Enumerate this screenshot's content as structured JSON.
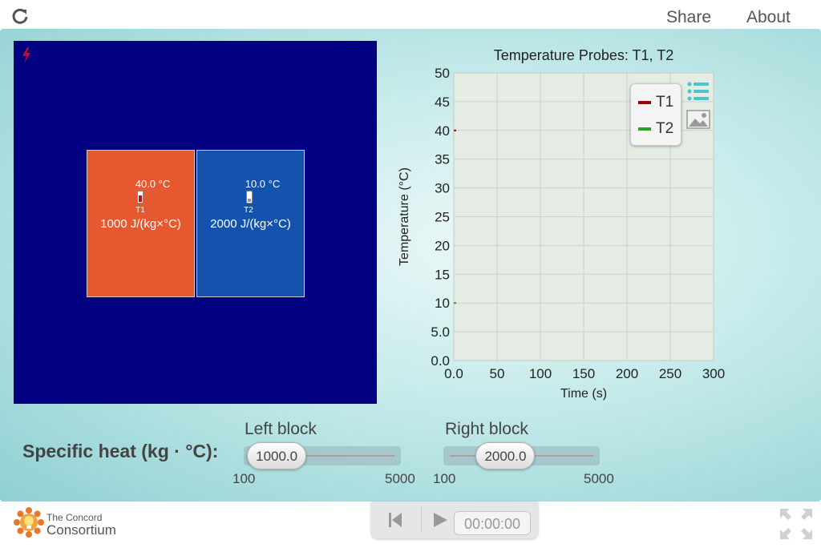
{
  "header": {
    "reload_icon": "reload-icon",
    "share_label": "Share",
    "about_label": "About"
  },
  "simulation": {
    "left_block": {
      "temperature": "40.0 °C",
      "probe_label": "T1",
      "specific_heat": "1000 J/(kg×°C)",
      "color": "#e6582f"
    },
    "right_block": {
      "temperature": "10.0 °C",
      "probe_label": "T2",
      "specific_heat": "2000 J/(kg×°C)",
      "color": "#1453ad"
    },
    "background_color": "#000080"
  },
  "chart_data": {
    "type": "line",
    "title": "Temperature Probes: T1, T2",
    "xlabel": "Time (s)",
    "ylabel": "Temperature (°C)",
    "xlim": [
      0,
      300
    ],
    "ylim": [
      0,
      50
    ],
    "x_ticks": [
      "0.0",
      "50",
      "100",
      "150",
      "200",
      "250",
      "300"
    ],
    "y_ticks": [
      "0.0",
      "5.0",
      "10",
      "15",
      "20",
      "25",
      "30",
      "35",
      "40",
      "45",
      "50"
    ],
    "grid": true,
    "legend_position": "top-right",
    "series": [
      {
        "name": "T1",
        "color": "#a00000",
        "x": [
          0
        ],
        "y": [
          40
        ]
      },
      {
        "name": "T2",
        "color": "#2ca02c",
        "x": [
          0
        ],
        "y": [
          10
        ]
      }
    ]
  },
  "chart_controls": {
    "legend_toggle_icon": "list-icon",
    "snapshot_icon": "image-icon"
  },
  "controls": {
    "label": "Specific heat (kg · °C):",
    "left_slider": {
      "title": "Left block",
      "value": "1000.0",
      "min": "100",
      "max": "5000",
      "position": 0.184
    },
    "right_slider": {
      "title": "Right block",
      "value": "2000.0",
      "min": "100",
      "max": "5000",
      "position": 0.388
    }
  },
  "footer": {
    "logo_line1": "The Concord",
    "logo_line2": "Consortium",
    "clock": "00:00:00",
    "reset_icon": "skip-back-icon",
    "play_icon": "play-icon",
    "fullscreen_icon": "fullscreen-icon"
  }
}
